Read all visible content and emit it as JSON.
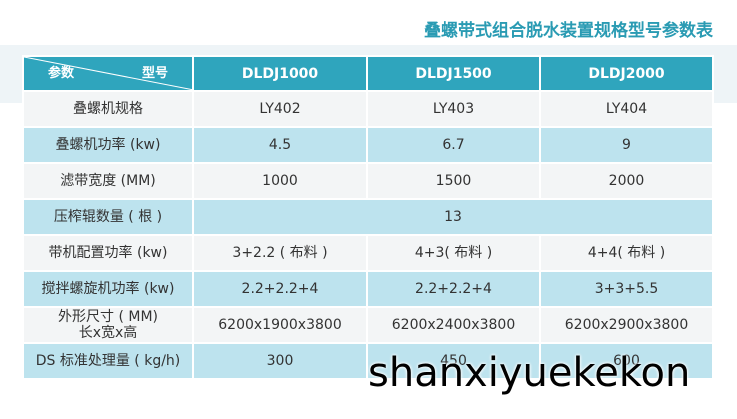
{
  "title": "叠螺带式组合脱水装置规格型号参数表",
  "table": {
    "corner": {
      "param": "参数",
      "model": "型号"
    },
    "header": [
      "DLDJ1000",
      "DLDJ1500",
      "DLDJ2000"
    ],
    "rows": [
      [
        "叠螺机规格",
        "LY402",
        "LY403",
        "LY404"
      ],
      [
        "叠螺机功率 (kw)",
        "4.5",
        "6.7",
        "9"
      ],
      [
        "滤带宽度 (MM)",
        "1000",
        "1500",
        "2000"
      ],
      [
        "压榨辊数量 ( 根 )",
        "13"
      ],
      [
        "带机配置功率 (kw)",
        "3+2.2 ( 布料 )",
        "4+3( 布料 )",
        "4+4( 布料 )"
      ],
      [
        "搅拌螺旋机功率 (kw)",
        "2.2+2.2+4",
        "2.2+2.2+4",
        "3+3+5.5"
      ],
      [
        "外形尺寸 ( MM)\n长x宽x高",
        "6200x1900x3800",
        "6200x2400x3800",
        "6200x2900x3800"
      ],
      [
        "DS 标准处理量 ( kg/h)",
        "300",
        "450",
        "600"
      ]
    ]
  },
  "watermark": "shanxiyuekekon"
}
